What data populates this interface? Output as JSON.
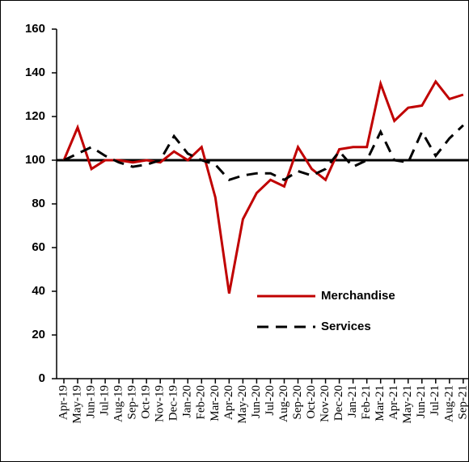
{
  "chart_data": {
    "type": "line",
    "categories": [
      "Apr-19",
      "May-19",
      "Jun-19",
      "Jul-19",
      "Aug-19",
      "Sep-19",
      "Oct-19",
      "Nov-19",
      "Dec-19",
      "Jan-20",
      "Feb-20",
      "Mar-20",
      "Apr-20",
      "May-20",
      "Jun-20",
      "Jul-20",
      "Aug-20",
      "Sep-20",
      "Oct-20",
      "Nov-20",
      "Dec-20",
      "Jan-21",
      "Feb-21",
      "Mar-21",
      "Apr-21",
      "May-21",
      "Jun-21",
      "Jul-21",
      "Aug-21",
      "Sep-21"
    ],
    "series": [
      {
        "name": "Merchandise",
        "color": "#c00000",
        "dash": false,
        "values": [
          100,
          115,
          96,
          100,
          100,
          99,
          100,
          99,
          104,
          100,
          106,
          83,
          39,
          73,
          85,
          91,
          88,
          106,
          96,
          91,
          105,
          106,
          106,
          135,
          118,
          124,
          125,
          136,
          128,
          130
        ]
      },
      {
        "name": "Services",
        "color": "#000000",
        "dash": true,
        "values": [
          100,
          103,
          106,
          102,
          99,
          97,
          98,
          100,
          111,
          103,
          100,
          98,
          91,
          93,
          94,
          94,
          91,
          95,
          93,
          96,
          104,
          97,
          100,
          113,
          100,
          99,
          113,
          102,
          110,
          116
        ]
      }
    ],
    "reference_line": 100,
    "ylim": [
      0,
      160
    ],
    "yticks": [
      0,
      20,
      40,
      60,
      80,
      100,
      120,
      140,
      160
    ],
    "legend": "center-right"
  }
}
